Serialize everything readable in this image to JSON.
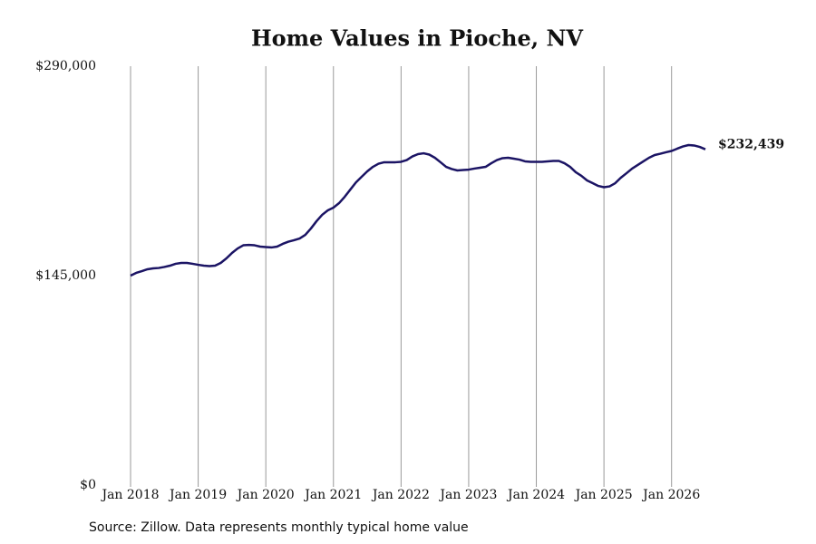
{
  "chart_data": {
    "type": "line",
    "title": "Home Values in Pioche, NV",
    "source": "Source: Zillow. Data represents monthly typical home value",
    "x": [
      "2018-01",
      "2018-02",
      "2018-03",
      "2018-04",
      "2018-05",
      "2018-06",
      "2018-07",
      "2018-08",
      "2018-09",
      "2018-10",
      "2018-11",
      "2018-12",
      "2019-01",
      "2019-02",
      "2019-03",
      "2019-04",
      "2019-05",
      "2019-06",
      "2019-07",
      "2019-08",
      "2019-09",
      "2019-10",
      "2019-11",
      "2019-12",
      "2020-01",
      "2020-02",
      "2020-03",
      "2020-04",
      "2020-05",
      "2020-06",
      "2020-07",
      "2020-08",
      "2020-09",
      "2020-10",
      "2020-11",
      "2020-12",
      "2021-01",
      "2021-02",
      "2021-03",
      "2021-04",
      "2021-05",
      "2021-06",
      "2021-07",
      "2021-08",
      "2021-09",
      "2021-10",
      "2021-11",
      "2021-12",
      "2022-01",
      "2022-02",
      "2022-03",
      "2022-04",
      "2022-05",
      "2022-06",
      "2022-07",
      "2022-08",
      "2022-09",
      "2022-10",
      "2022-11",
      "2022-12",
      "2023-01",
      "2023-02",
      "2023-03",
      "2023-04",
      "2023-05",
      "2023-06",
      "2023-07",
      "2023-08",
      "2023-09",
      "2023-10",
      "2023-11",
      "2023-12",
      "2024-01",
      "2024-02",
      "2024-03",
      "2024-04",
      "2024-05",
      "2024-06",
      "2024-07",
      "2024-08",
      "2024-09",
      "2024-10",
      "2024-11",
      "2024-12",
      "2025-01",
      "2025-02",
      "2025-03",
      "2025-04",
      "2025-05",
      "2025-06",
      "2025-07",
      "2025-08",
      "2025-09",
      "2025-10",
      "2025-11",
      "2025-12",
      "2026-01",
      "2026-02",
      "2026-03",
      "2026-04",
      "2026-05",
      "2026-06",
      "2026-07"
    ],
    "series": [
      {
        "color": "#1b1464",
        "values": [
          145000,
          146900,
          148100,
          149400,
          150000,
          150300,
          151000,
          151900,
          153200,
          153800,
          153800,
          153200,
          152500,
          151900,
          151600,
          151900,
          153800,
          156900,
          160700,
          163800,
          166000,
          166300,
          166000,
          165100,
          164800,
          164500,
          165100,
          167000,
          168500,
          169500,
          170700,
          173200,
          177600,
          182700,
          187100,
          190200,
          192100,
          195200,
          199600,
          204600,
          209600,
          213400,
          217200,
          220300,
          222500,
          223500,
          223500,
          223500,
          223800,
          225000,
          227500,
          229100,
          229700,
          228800,
          226600,
          223500,
          220300,
          218800,
          217800,
          218100,
          218400,
          219100,
          219700,
          220300,
          222800,
          225000,
          226300,
          226600,
          226000,
          225300,
          224100,
          223800,
          223800,
          223800,
          224100,
          224400,
          224400,
          222800,
          220300,
          216600,
          214100,
          210900,
          209000,
          207100,
          206200,
          206800,
          209000,
          212800,
          215900,
          219100,
          221600,
          224100,
          226600,
          228500,
          229400,
          230400,
          231300,
          232900,
          234400,
          235400,
          235100,
          234100,
          232439
        ]
      }
    ],
    "annotation": {
      "x": "2026-07",
      "value": 232439,
      "label": "$232,439"
    },
    "xlim": [
      "2018-01",
      "2026-07"
    ],
    "xticks": [
      {
        "value": "2018-01",
        "label": "Jan 2018"
      },
      {
        "value": "2019-01",
        "label": "Jan 2019"
      },
      {
        "value": "2020-01",
        "label": "Jan 2020"
      },
      {
        "value": "2021-01",
        "label": "Jan 2021"
      },
      {
        "value": "2022-01",
        "label": "Jan 2022"
      },
      {
        "value": "2023-01",
        "label": "Jan 2023"
      },
      {
        "value": "2024-01",
        "label": "Jan 2024"
      },
      {
        "value": "2025-01",
        "label": "Jan 2025"
      },
      {
        "value": "2026-01",
        "label": "Jan 2026"
      }
    ],
    "ylim": [
      0,
      290000
    ],
    "yticks": [
      {
        "value": 0,
        "label": "$0"
      },
      {
        "value": 145000,
        "label": "$145,000"
      },
      {
        "value": 290000,
        "label": "$290,000"
      }
    ],
    "grid": "x"
  }
}
